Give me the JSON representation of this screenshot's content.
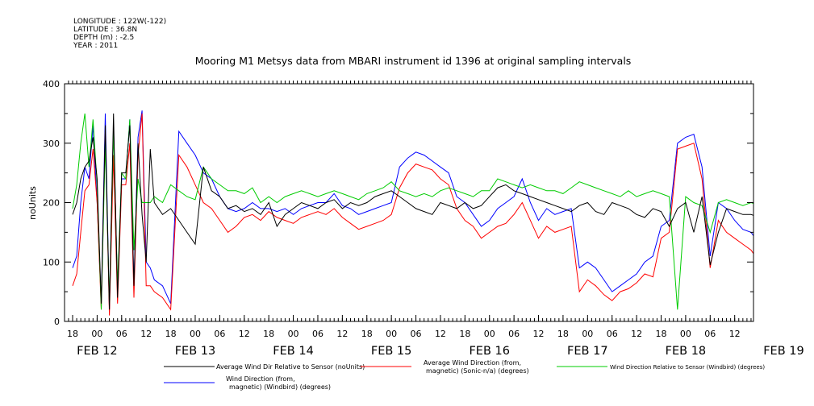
{
  "header": {
    "lines": [
      "LONGITUDE : 122W(-122)",
      "LATITUDE : 36.8N",
      "DEPTH (m) : -2.5",
      "YEAR : 2011"
    ]
  },
  "chart_data": {
    "type": "line",
    "title": "Mooring M1 Metsys data from MBARI instrument id 1396 at original sampling intervals",
    "ylabel": "noUnits",
    "xlabel": "",
    "ylim": [
      0,
      400
    ],
    "yticks": [
      0,
      100,
      200,
      300,
      400
    ],
    "xlim": [
      0,
      174
    ],
    "x_unit": "hours since FEB 11 18:00 (2011)",
    "x_hour_labels": [
      "18",
      "00",
      "06",
      "12",
      "18",
      "00",
      "06",
      "12",
      "18",
      "00",
      "06",
      "12",
      "18",
      "00",
      "06",
      "12",
      "18",
      "00",
      "06",
      "12",
      "18",
      "00",
      "06",
      "12",
      "18",
      "00",
      "06",
      "12",
      "18",
      "00",
      "06",
      "12"
    ],
    "x_day_labels": [
      {
        "label": "FEB 12",
        "hour": 6
      },
      {
        "label": "FEB 13",
        "hour": 30
      },
      {
        "label": "FEB 14",
        "hour": 54
      },
      {
        "label": "FEB 15",
        "hour": 78
      },
      {
        "label": "FEB 16",
        "hour": 102
      },
      {
        "label": "FEB 17",
        "hour": 126
      },
      {
        "label": "FEB 18",
        "hour": 150
      },
      {
        "label": "FEB 19",
        "hour": 174
      }
    ],
    "grid": false,
    "legend_position": "bottom",
    "series": [
      {
        "name": "Average Wind Dir Relative to Sensor (noUnits)",
        "color": "#000000",
        "x": [
          0,
          1,
          2,
          3,
          4,
          5,
          6,
          7,
          8,
          9,
          10,
          11,
          12,
          13,
          14,
          15,
          16,
          17,
          18,
          19,
          20,
          22,
          24,
          26,
          28,
          30,
          32,
          34,
          36,
          38,
          40,
          42,
          44,
          46,
          48,
          50,
          52,
          54,
          56,
          58,
          60,
          62,
          64,
          66,
          68,
          70,
          72,
          74,
          76,
          78,
          80,
          82,
          84,
          86,
          88,
          90,
          92,
          94,
          96,
          98,
          100,
          102,
          104,
          106,
          108,
          110,
          112,
          114,
          116,
          118,
          120,
          122,
          124,
          126,
          128,
          130,
          132,
          134,
          136,
          138,
          140,
          142,
          144,
          146,
          148,
          150,
          152,
          154,
          156,
          158,
          160,
          162,
          164,
          166,
          168,
          170,
          172,
          174,
          175
        ],
        "y": [
          180,
          200,
          240,
          260,
          270,
          310,
          240,
          30,
          330,
          20,
          350,
          40,
          250,
          250,
          330,
          60,
          300,
          180,
          100,
          290,
          200,
          180,
          190,
          170,
          150,
          130,
          260,
          220,
          210,
          190,
          195,
          185,
          190,
          180,
          200,
          160,
          180,
          190,
          200,
          195,
          190,
          200,
          205,
          190,
          200,
          195,
          200,
          210,
          215,
          220,
          210,
          200,
          190,
          185,
          180,
          200,
          195,
          190,
          200,
          190,
          195,
          210,
          225,
          230,
          220,
          215,
          210,
          205,
          200,
          195,
          190,
          185,
          195,
          200,
          185,
          180,
          200,
          195,
          190,
          180,
          175,
          190,
          185,
          160,
          190,
          200,
          150,
          210,
          95,
          150,
          190,
          185,
          180,
          180,
          175,
          175,
          180,
          175,
          165
        ]
      },
      {
        "name": "Average Wind Direction (from, magnetic) (Sonic-n/a) (degrees)",
        "color": "#ff0000",
        "x": [
          0,
          1,
          2,
          3,
          4,
          5,
          6,
          7,
          8,
          9,
          10,
          11,
          12,
          13,
          14,
          15,
          16,
          17,
          18,
          19,
          20,
          22,
          24,
          26,
          28,
          30,
          32,
          34,
          36,
          38,
          40,
          42,
          44,
          46,
          48,
          50,
          52,
          54,
          56,
          58,
          60,
          62,
          64,
          66,
          68,
          70,
          72,
          74,
          76,
          78,
          80,
          82,
          84,
          86,
          88,
          90,
          92,
          94,
          96,
          98,
          100,
          102,
          104,
          106,
          108,
          110,
          112,
          114,
          116,
          118,
          120,
          122,
          124,
          126,
          128,
          130,
          132,
          134,
          136,
          138,
          140,
          142,
          144,
          146,
          148,
          150,
          152,
          154,
          156,
          158,
          160,
          162,
          164,
          166,
          168,
          170,
          172,
          174,
          175
        ],
        "y": [
          60,
          80,
          150,
          220,
          230,
          290,
          200,
          20,
          320,
          10,
          280,
          30,
          230,
          230,
          300,
          40,
          280,
          350,
          60,
          60,
          50,
          40,
          20,
          280,
          260,
          230,
          200,
          190,
          170,
          150,
          160,
          175,
          180,
          170,
          185,
          175,
          170,
          165,
          175,
          180,
          185,
          180,
          190,
          175,
          165,
          155,
          160,
          165,
          170,
          180,
          225,
          250,
          265,
          260,
          255,
          240,
          230,
          190,
          170,
          160,
          140,
          150,
          160,
          165,
          180,
          200,
          170,
          140,
          160,
          150,
          155,
          160,
          50,
          70,
          60,
          45,
          35,
          50,
          55,
          65,
          80,
          75,
          140,
          150,
          290,
          295,
          300,
          240,
          90,
          170,
          150,
          140,
          130,
          120,
          100,
          160,
          180,
          200,
          150
        ]
      },
      {
        "name": "Wind Direction Relative to Sensor (Windbird) (degrees)",
        "color": "#00cc00",
        "x": [
          0,
          1,
          2,
          3,
          4,
          5,
          6,
          7,
          8,
          9,
          10,
          11,
          12,
          13,
          14,
          15,
          16,
          17,
          18,
          19,
          20,
          22,
          24,
          26,
          28,
          30,
          32,
          34,
          36,
          38,
          40,
          42,
          44,
          46,
          48,
          50,
          52,
          54,
          56,
          58,
          60,
          62,
          64,
          66,
          68,
          70,
          72,
          74,
          76,
          78,
          80,
          82,
          84,
          86,
          88,
          90,
          92,
          94,
          96,
          98,
          100,
          102,
          104,
          106,
          108,
          110,
          112,
          114,
          116,
          118,
          120,
          122,
          124,
          126,
          128,
          130,
          132,
          134,
          136,
          138,
          140,
          142,
          144,
          146,
          148,
          150,
          152,
          154,
          156,
          158,
          160,
          162,
          164,
          166,
          168,
          170,
          172,
          174,
          175
        ],
        "y": [
          190,
          230,
          300,
          350,
          260,
          340,
          230,
          20,
          300,
          30,
          320,
          60,
          250,
          240,
          340,
          120,
          240,
          200,
          200,
          200,
          210,
          200,
          230,
          220,
          210,
          205,
          260,
          240,
          230,
          220,
          220,
          215,
          225,
          200,
          210,
          200,
          210,
          215,
          220,
          215,
          210,
          215,
          220,
          215,
          210,
          205,
          215,
          220,
          225,
          235,
          220,
          215,
          210,
          215,
          210,
          220,
          225,
          220,
          215,
          210,
          220,
          220,
          240,
          235,
          230,
          225,
          230,
          225,
          220,
          220,
          215,
          225,
          235,
          230,
          225,
          220,
          215,
          210,
          220,
          210,
          215,
          220,
          215,
          210,
          20,
          210,
          200,
          195,
          150,
          200,
          205,
          200,
          195,
          200,
          195,
          195,
          200,
          250,
          240
        ]
      },
      {
        "name": "Wind Direction (from, magnetic) (Windbird) (degrees)",
        "color": "#0000ff",
        "x": [
          0,
          1,
          2,
          3,
          4,
          5,
          6,
          7,
          8,
          9,
          10,
          11,
          12,
          13,
          14,
          15,
          16,
          17,
          18,
          19,
          20,
          22,
          24,
          26,
          28,
          30,
          32,
          34,
          36,
          38,
          40,
          42,
          44,
          46,
          48,
          50,
          52,
          54,
          56,
          58,
          60,
          62,
          64,
          66,
          68,
          70,
          72,
          74,
          76,
          78,
          80,
          82,
          84,
          86,
          88,
          90,
          92,
          94,
          96,
          98,
          100,
          102,
          104,
          106,
          108,
          110,
          112,
          114,
          116,
          118,
          120,
          122,
          124,
          126,
          128,
          130,
          132,
          134,
          136,
          138,
          140,
          142,
          144,
          146,
          148,
          150,
          152,
          154,
          156,
          158,
          160,
          162,
          164,
          166,
          168,
          170,
          172,
          174,
          175
        ],
        "y": [
          90,
          110,
          200,
          260,
          240,
          330,
          200,
          30,
          350,
          20,
          330,
          50,
          240,
          240,
          340,
          60,
          310,
          355,
          100,
          90,
          70,
          60,
          30,
          320,
          300,
          280,
          250,
          240,
          210,
          190,
          185,
          190,
          200,
          190,
          190,
          185,
          190,
          180,
          190,
          195,
          200,
          200,
          215,
          195,
          190,
          180,
          185,
          190,
          195,
          200,
          260,
          275,
          285,
          280,
          270,
          260,
          250,
          210,
          200,
          180,
          160,
          170,
          190,
          200,
          210,
          240,
          200,
          170,
          190,
          180,
          185,
          190,
          90,
          100,
          90,
          70,
          50,
          60,
          70,
          80,
          100,
          110,
          160,
          170,
          300,
          310,
          315,
          260,
          110,
          200,
          190,
          170,
          155,
          150,
          130,
          180,
          195,
          210,
          170
        ]
      }
    ]
  },
  "legend": {
    "col1_line1": "Average Wind Dir Relative to Sensor (noUnits)",
    "col1_line2a": "Wind Direction (from,",
    "col1_line2b": "magnetic) (Windbird) (degrees)",
    "col2_line1a": "Average Wind Direction (from,",
    "col2_line1b": "magnetic) (Sonic-n/a) (degrees)",
    "col3_line1": "Wind Direction Relative to Sensor (Windbird) (degrees)"
  }
}
